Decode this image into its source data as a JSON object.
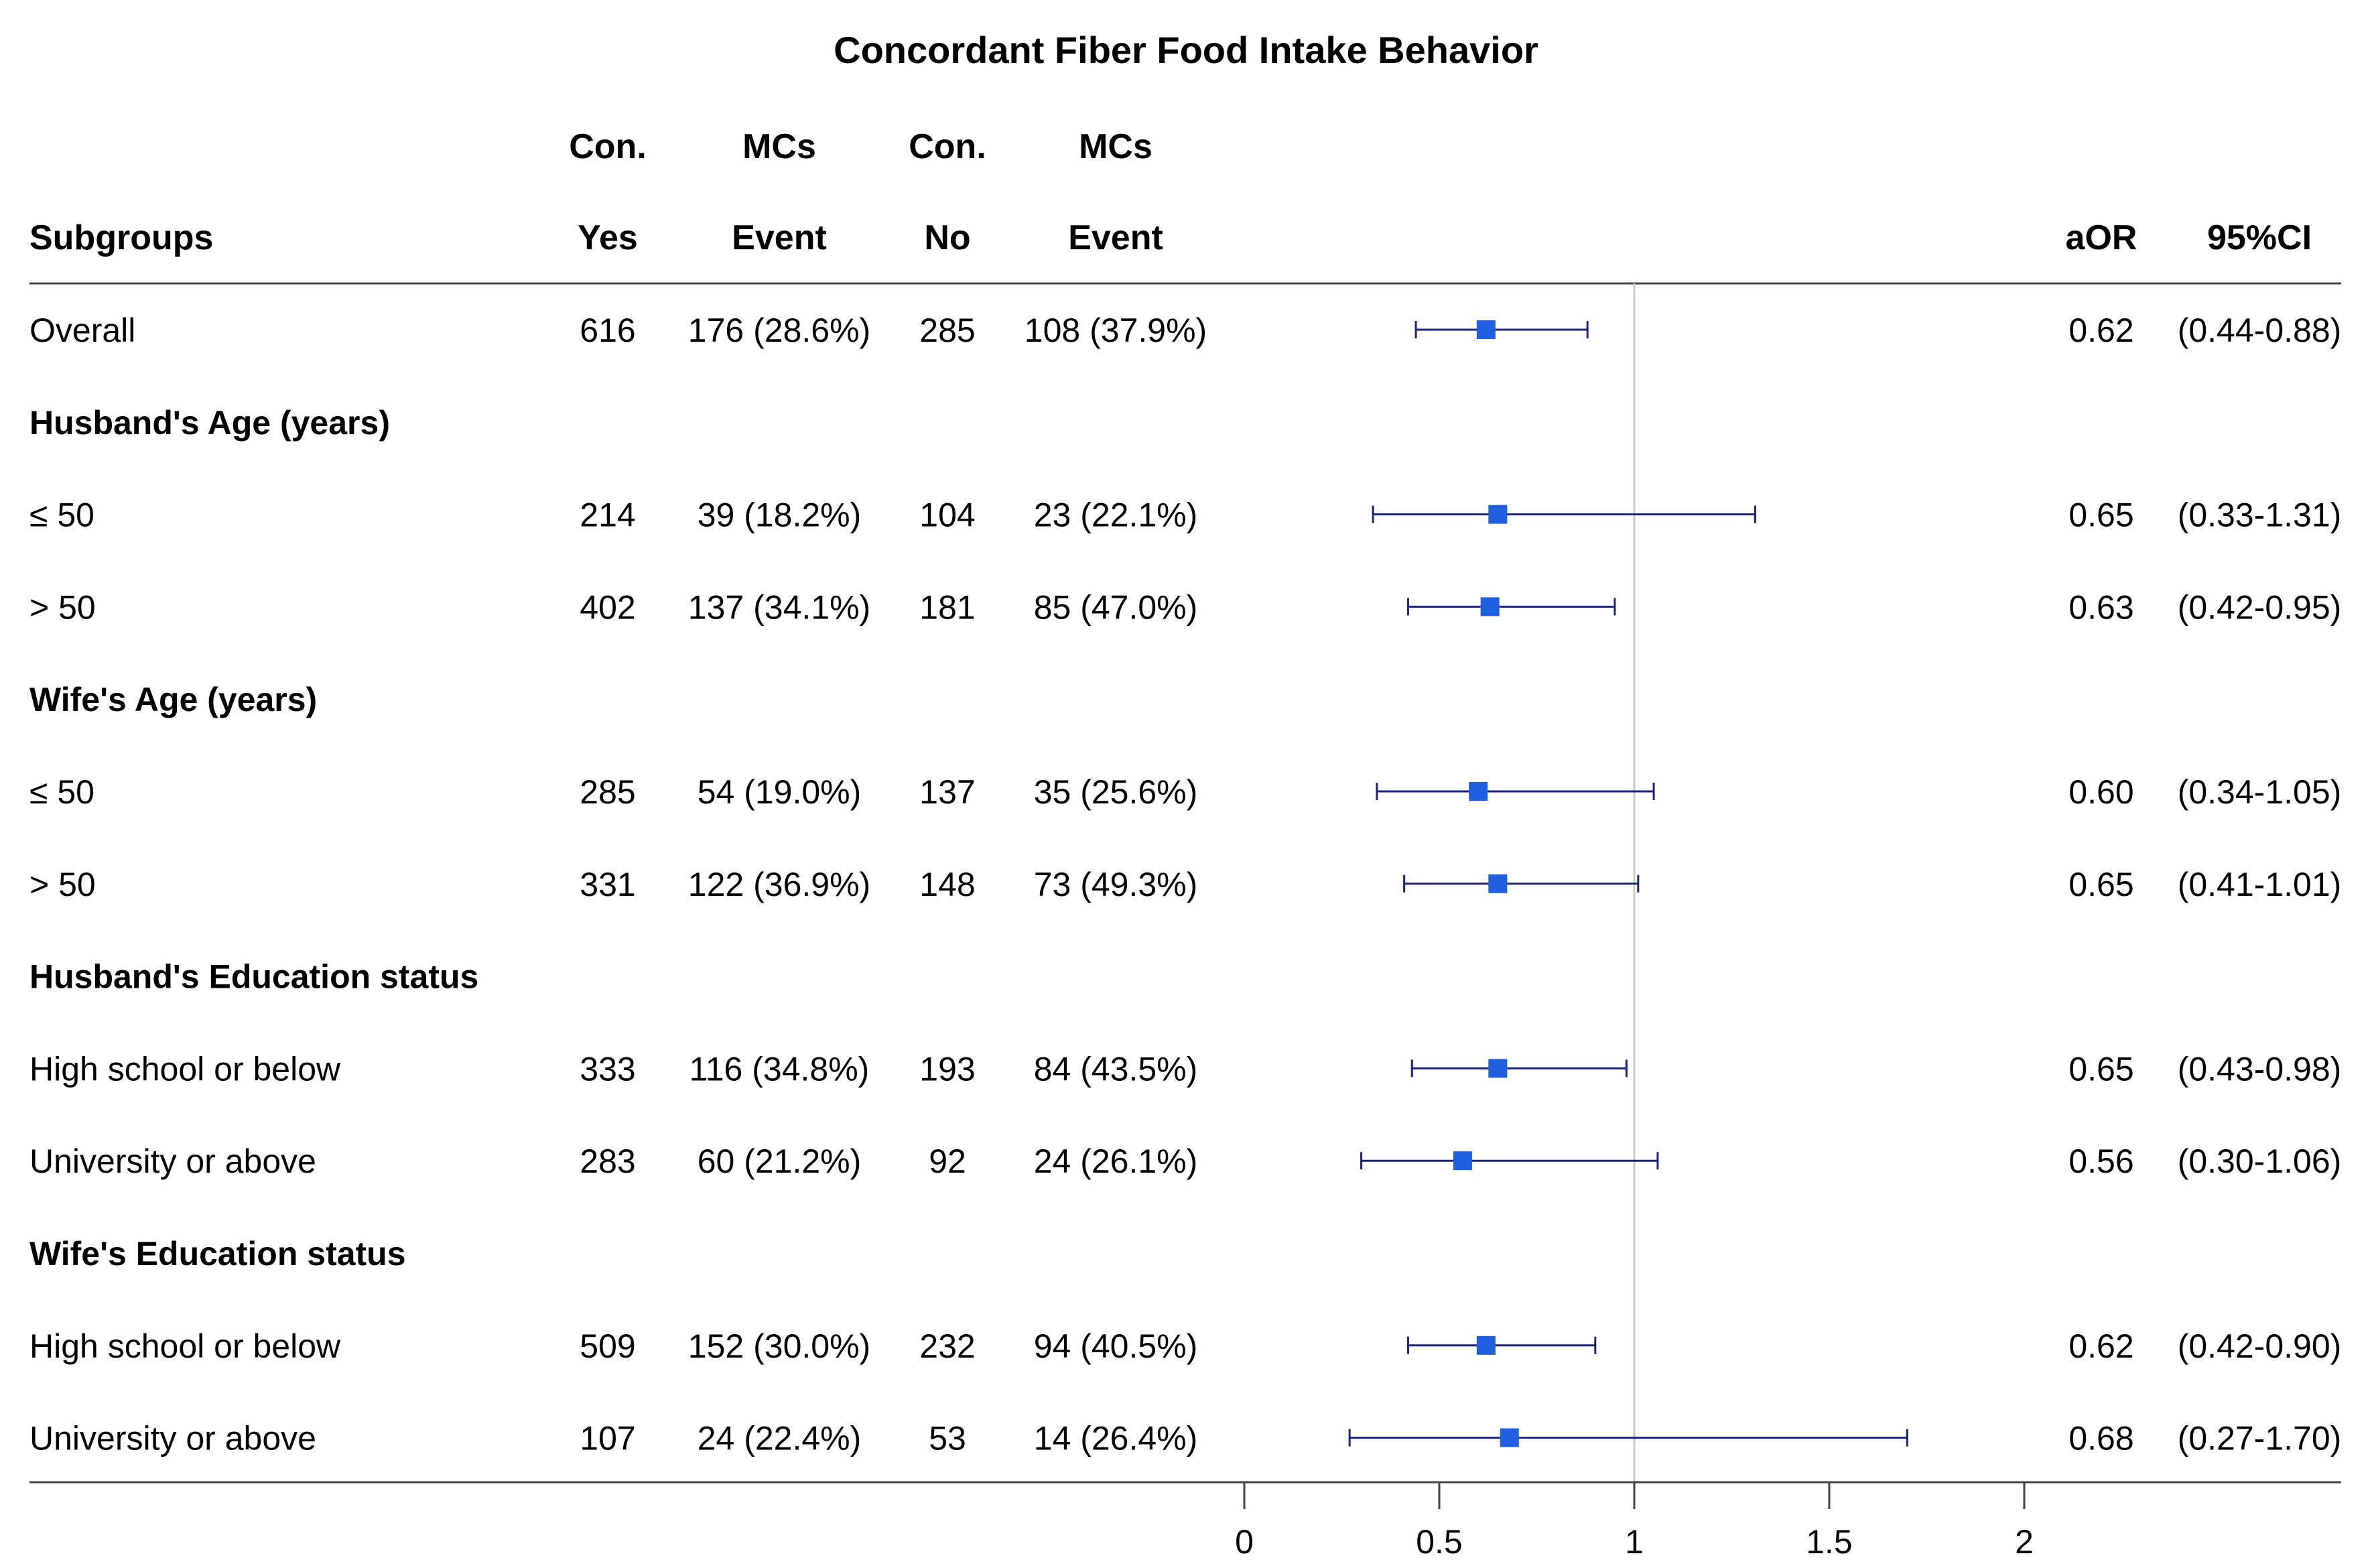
{
  "chart_data": {
    "type": "forest",
    "title": "Concordant Fiber Food Intake Behavior",
    "headers": {
      "row1": {
        "con_yes": "Con.",
        "mcs_yes": "MCs",
        "con_no": "Con.",
        "mcs_no": "MCs"
      },
      "row2": {
        "subgroups": "Subgroups",
        "con_yes": "Yes",
        "mcs_yes": "Event",
        "con_no": "No",
        "mcs_no": "Event",
        "aor": "aOR",
        "ci": "95%CI"
      }
    },
    "rows": [
      {
        "kind": "data",
        "label": "Overall",
        "yes_n": "616",
        "yes_event": "176 (28.6%)",
        "no_n": "285",
        "no_event": "108 (37.9%)",
        "aor": 0.62,
        "lower": 0.44,
        "upper": 0.88,
        "aor_text": "0.62",
        "ci_text": "(0.44-0.88)"
      },
      {
        "kind": "group",
        "label": "Husband's Age (years)"
      },
      {
        "kind": "data",
        "label": "≤ 50",
        "yes_n": "214",
        "yes_event": "39 (18.2%)",
        "no_n": "104",
        "no_event": "23 (22.1%)",
        "aor": 0.65,
        "lower": 0.33,
        "upper": 1.31,
        "aor_text": "0.65",
        "ci_text": "(0.33-1.31)"
      },
      {
        "kind": "data",
        "label": "> 50",
        "yes_n": "402",
        "yes_event": "137 (34.1%)",
        "no_n": "181",
        "no_event": "85 (47.0%)",
        "aor": 0.63,
        "lower": 0.42,
        "upper": 0.95,
        "aor_text": "0.63",
        "ci_text": "(0.42-0.95)"
      },
      {
        "kind": "group",
        "label": "Wife's Age (years)"
      },
      {
        "kind": "data",
        "label": "≤ 50",
        "yes_n": "285",
        "yes_event": "54 (19.0%)",
        "no_n": "137",
        "no_event": "35 (25.6%)",
        "aor": 0.6,
        "lower": 0.34,
        "upper": 1.05,
        "aor_text": "0.60",
        "ci_text": "(0.34-1.05)"
      },
      {
        "kind": "data",
        "label": "> 50",
        "yes_n": "331",
        "yes_event": "122 (36.9%)",
        "no_n": "148",
        "no_event": "73 (49.3%)",
        "aor": 0.65,
        "lower": 0.41,
        "upper": 1.01,
        "aor_text": "0.65",
        "ci_text": "(0.41-1.01)"
      },
      {
        "kind": "group",
        "label": "Husband's Education status"
      },
      {
        "kind": "data",
        "label": "High school or below",
        "yes_n": "333",
        "yes_event": "116 (34.8%)",
        "no_n": "193",
        "no_event": "84 (43.5%)",
        "aor": 0.65,
        "lower": 0.43,
        "upper": 0.98,
        "aor_text": "0.65",
        "ci_text": "(0.43-0.98)"
      },
      {
        "kind": "data",
        "label": "University or above",
        "yes_n": "283",
        "yes_event": "60 (21.2%)",
        "no_n": "92",
        "no_event": "24 (26.1%)",
        "aor": 0.56,
        "lower": 0.3,
        "upper": 1.06,
        "aor_text": "0.56",
        "ci_text": "(0.30-1.06)"
      },
      {
        "kind": "group",
        "label": "Wife's Education status"
      },
      {
        "kind": "data",
        "label": "High school or below",
        "yes_n": "509",
        "yes_event": "152 (30.0%)",
        "no_n": "232",
        "no_event": "94 (40.5%)",
        "aor": 0.62,
        "lower": 0.42,
        "upper": 0.9,
        "aor_text": "0.62",
        "ci_text": "(0.42-0.90)"
      },
      {
        "kind": "data",
        "label": "University or above",
        "yes_n": "107",
        "yes_event": "24 (22.4%)",
        "no_n": "53",
        "no_event": "14 (26.4%)",
        "aor": 0.68,
        "lower": 0.27,
        "upper": 1.7,
        "aor_text": "0.68",
        "ci_text": "(0.27-1.70)"
      }
    ],
    "x_axis": {
      "ticks": [
        0,
        0.5,
        1,
        1.5,
        2
      ],
      "tick_labels": [
        "0",
        "0.5",
        "1",
        "1.5",
        "2"
      ],
      "range": [
        0,
        2
      ],
      "reference": 1
    },
    "colors": {
      "marker": "#1f5fe0",
      "ci_line": "#1a237e",
      "reference": "#cccccc",
      "rule": "#444444"
    }
  }
}
